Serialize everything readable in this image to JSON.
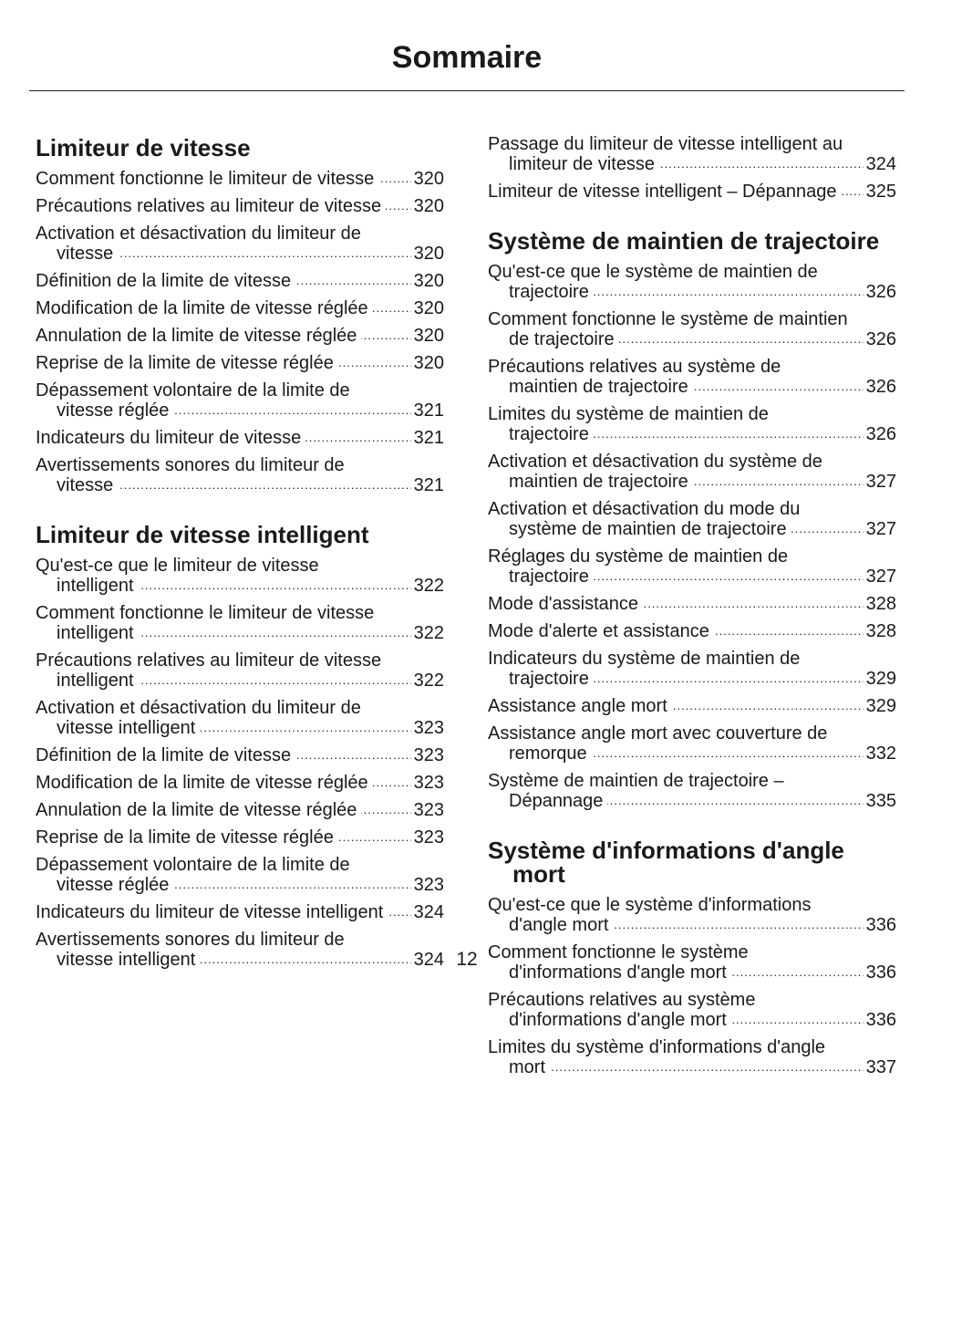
{
  "header": {
    "title": "Sommaire"
  },
  "columns": [
    {
      "sections": [
        {
          "heading": "Limiteur de vitesse",
          "entries": [
            {
              "title": "Comment fonctionne le limiteur de vitesse",
              "page": 320
            },
            {
              "title": "Précautions relatives au limiteur de vitesse",
              "page": 320
            },
            {
              "title": "Activation et désactivation du limiteur de vitesse",
              "page": 320
            },
            {
              "title": "Définition de la limite de vitesse",
              "page": 320
            },
            {
              "title": "Modification de la limite de vitesse réglée",
              "page": 320
            },
            {
              "title": "Annulation de la limite de vitesse réglée",
              "page": 320
            },
            {
              "title": "Reprise de la limite de vitesse réglée",
              "page": 320
            },
            {
              "title": "Dépassement volontaire de la limite de vitesse réglée",
              "page": 321
            },
            {
              "title": "Indicateurs du limiteur de vitesse",
              "page": 321
            },
            {
              "title": "Avertissements sonores du limiteur de vitesse",
              "page": 321
            }
          ]
        },
        {
          "heading": "Limiteur de vitesse intelligent",
          "entries": [
            {
              "title": "Qu'est-ce que le limiteur de vitesse intelligent",
              "page": 322
            },
            {
              "title": "Comment fonctionne le limiteur de vitesse intelligent",
              "page": 322
            },
            {
              "title": "Précautions relatives au limiteur de vitesse intelligent",
              "page": 322
            },
            {
              "title": "Activation et désactivation du limiteur de vitesse intelligent",
              "page": 323
            },
            {
              "title": "Définition de la limite de vitesse",
              "page": 323
            },
            {
              "title": "Modification de la limite de vitesse réglée",
              "page": 323
            },
            {
              "title": "Annulation de la limite de vitesse réglée",
              "page": 323
            },
            {
              "title": "Reprise de la limite de vitesse réglée",
              "page": 323
            },
            {
              "title": "Dépassement volontaire de la limite de vitesse réglée",
              "page": 323
            },
            {
              "title": "Indicateurs du limiteur de vitesse intelligent",
              "page": 324
            },
            {
              "title": "Avertissements sonores du limiteur de vitesse intelligent",
              "page": 324
            }
          ]
        }
      ]
    },
    {
      "sections": [
        {
          "entries": [
            {
              "title": "Passage du limiteur de vitesse intelligent au limiteur de vitesse",
              "page": 324
            },
            {
              "title": "Limiteur de vitesse intelligent – Dépannage",
              "page": 325
            }
          ]
        },
        {
          "heading": "Système de maintien de trajectoire",
          "entries": [
            {
              "title": "Qu'est-ce que le système de maintien de trajectoire",
              "page": 326
            },
            {
              "title": "Comment fonctionne le système de maintien de trajectoire",
              "page": 326
            },
            {
              "title": "Précautions relatives au système de maintien de trajectoire",
              "page": 326
            },
            {
              "title": "Limites du système de maintien de trajectoire",
              "page": 326
            },
            {
              "title": "Activation et désactivation du système de maintien de trajectoire",
              "page": 327
            },
            {
              "title": "Activation et désactivation du mode du système de maintien de trajectoire",
              "page": 327
            },
            {
              "title": "Réglages du système de maintien de trajectoire",
              "page": 327
            },
            {
              "title": "Mode d'assistance",
              "page": 328
            },
            {
              "title": "Mode d'alerte et assistance",
              "page": 328
            },
            {
              "title": "Indicateurs du système de maintien de trajectoire",
              "page": 329
            },
            {
              "title": "Assistance angle mort",
              "page": 329
            },
            {
              "title": "Assistance angle mort avec couverture de remorque",
              "page": 332
            },
            {
              "title": "Système de maintien de trajectoire – Dépannage",
              "page": 335
            }
          ]
        },
        {
          "heading": "Système d'informations d'angle mort",
          "entries": [
            {
              "title": "Qu'est-ce que le système d'informations d'angle mort",
              "page": 336
            },
            {
              "title": "Comment fonctionne le système d'informations d'angle mort",
              "page": 336
            },
            {
              "title": "Précautions relatives au système d'informations d'angle mort",
              "page": 336
            },
            {
              "title": "Limites du système d'informations d'angle mort",
              "page": 337
            }
          ]
        }
      ]
    }
  ],
  "page_number": 12
}
